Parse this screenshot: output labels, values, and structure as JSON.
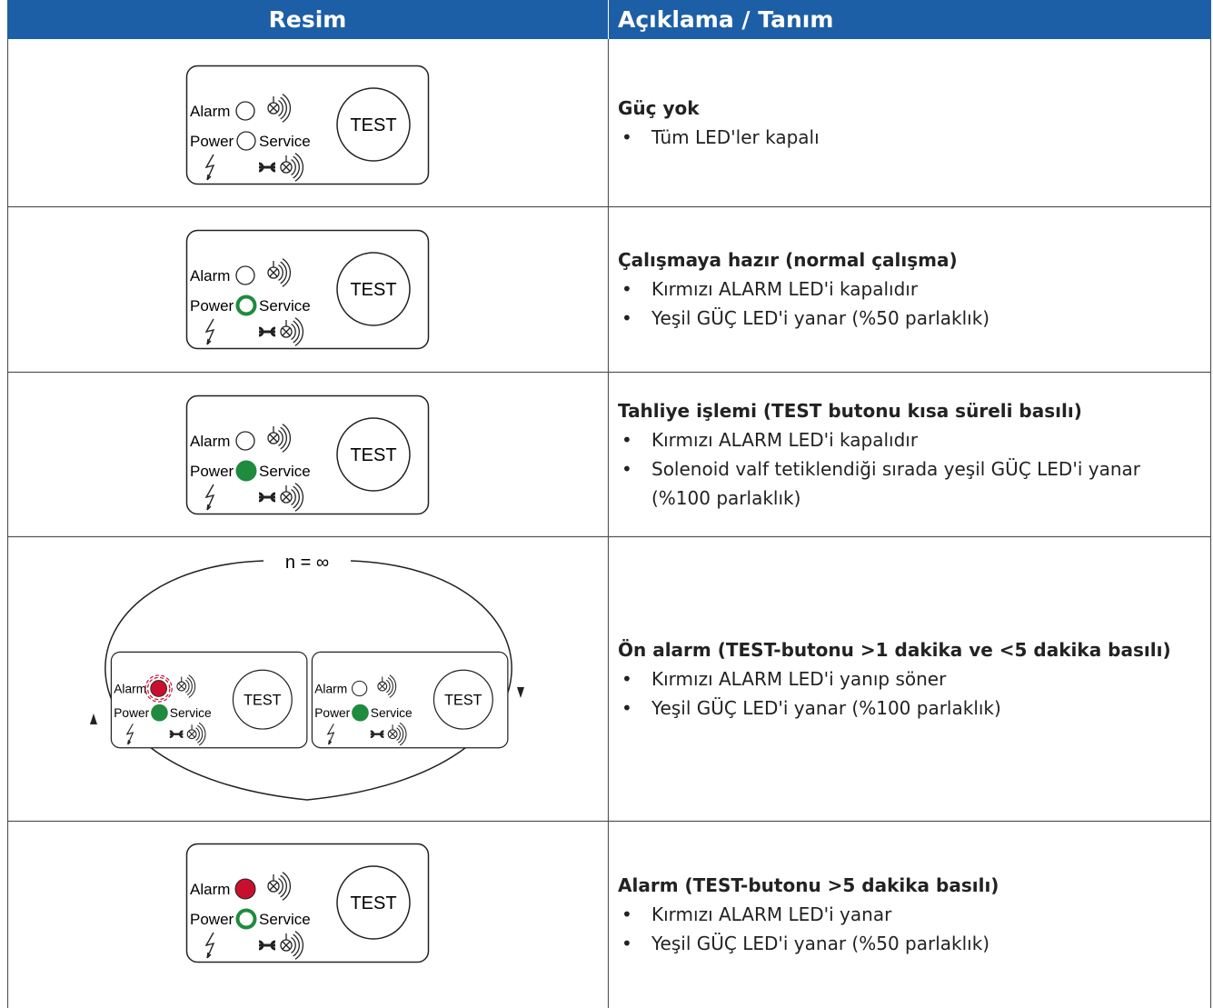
{
  "header": {
    "col1": "Resim",
    "col2": "Açıklama / Tanım"
  },
  "panel_labels": {
    "alarm": "Alarm",
    "power": "Power",
    "service": "Service",
    "test": "TEST"
  },
  "loop_label": "n = ∞",
  "rows": [
    {
      "title": "Güç yok",
      "bullets": [
        "Tüm LED'ler kapalı"
      ]
    },
    {
      "title": "Çalışmaya hazır (normal çalışma)",
      "bullets": [
        "Kırmızı ALARM LED'i kapalıdır",
        "Yeşil GÜÇ LED'i yanar (%50 parlaklık)"
      ]
    },
    {
      "title": "Tahliye işlemi (TEST butonu kısa süreli basılı)",
      "bullets": [
        "Kırmızı ALARM LED'i kapalıdır",
        "Solenoid valf tetiklendiği sırada yeşil GÜÇ LED'i yanar (%100 parlaklık)"
      ]
    },
    {
      "title": "Ön alarm (TEST-butonu >1 dakika ve <5 dakika basılı)",
      "bullets": [
        "Kırmızı ALARM LED'i yanıp söner",
        "Yeşil GÜÇ LED'i yanar (%100 parlaklık)"
      ]
    },
    {
      "title": "Alarm (TEST-butonu >5 dakika basılı)",
      "bullets": [
        "Kırmızı ALARM LED'i yanar",
        "Yeşil GÜÇ LED'i yanar (%50 parlaklık)"
      ]
    }
  ]
}
